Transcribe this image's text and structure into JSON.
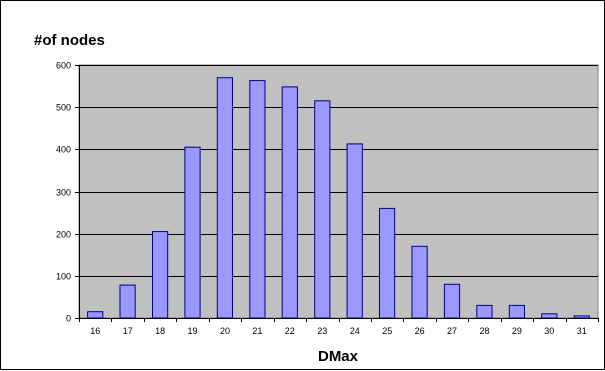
{
  "chart_data": {
    "type": "bar",
    "title": "",
    "ylabel": "#of nodes",
    "xlabel": "DMax",
    "categories": [
      "16",
      "17",
      "18",
      "19",
      "20",
      "21",
      "22",
      "23",
      "24",
      "25",
      "26",
      "27",
      "28",
      "29",
      "30",
      "31"
    ],
    "series": [
      {
        "values": [
          15,
          78,
          205,
          405,
          570,
          563,
          548,
          515,
          413,
          260,
          170,
          80,
          30,
          30,
          10,
          5
        ]
      }
    ],
    "ylim": [
      0,
      600
    ],
    "yticks": [
      0,
      100,
      200,
      300,
      400,
      500,
      600
    ],
    "grid": true,
    "legend": "none",
    "colors": {
      "bar_fill": "#9999ff",
      "bar_stroke": "#000080",
      "plot_background": "#c0c0c0",
      "gridline": "#000000"
    }
  }
}
